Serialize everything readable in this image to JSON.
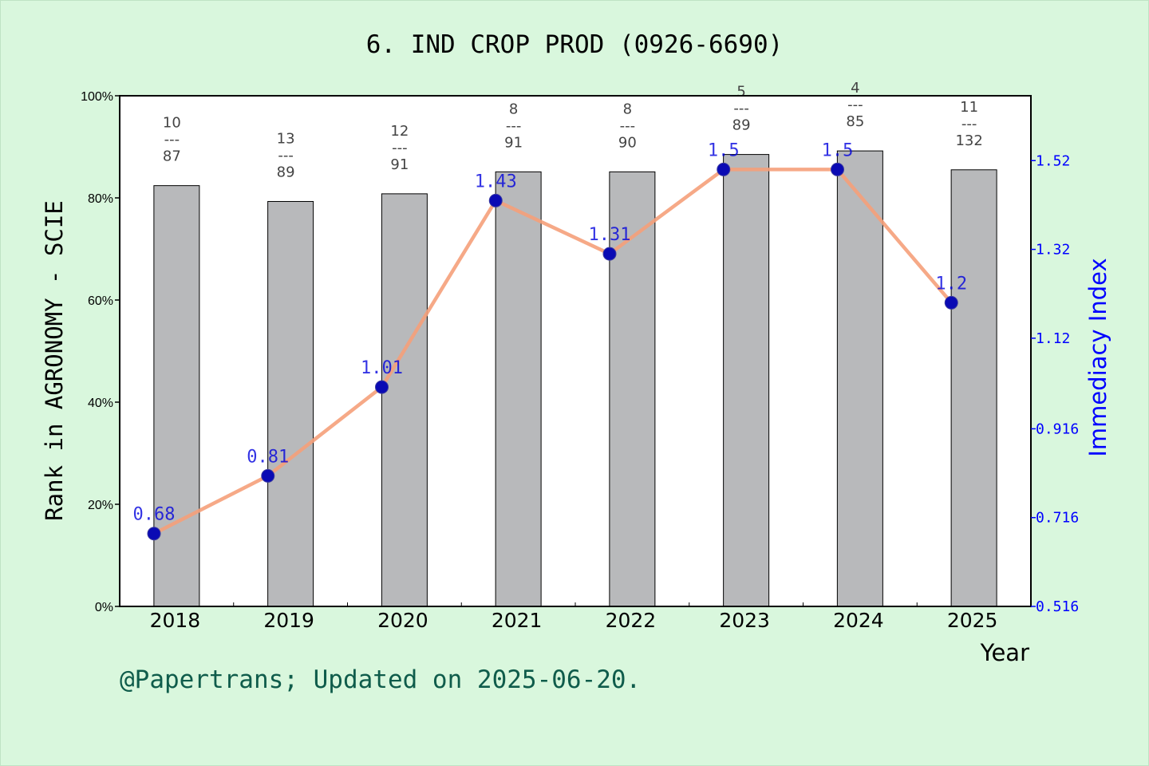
{
  "page": {
    "footer": "@Papertrans; Updated on 2025-06-20."
  },
  "colors": {
    "background": "#d9f7dd",
    "plot_background": "#ffffff",
    "bar": "#b8b9bb",
    "line": "#f5a07a",
    "point": "#0a0ab4",
    "label_blue": "#0000dd",
    "right_axis": "#0000ff"
  },
  "chart_data": {
    "type": "bar",
    "title": "6. IND CROP PROD (0926-6690)",
    "xlabel": "Year",
    "ylabel": "Rank in AGRONOMY - SCIE",
    "y2label": "Immediacy Index",
    "categories": [
      "2018",
      "2019",
      "2020",
      "2021",
      "2022",
      "2023",
      "2024",
      "2025"
    ],
    "ylim": [
      0,
      100
    ],
    "y_ticks": [
      0,
      20,
      40,
      60,
      80,
      100
    ],
    "y_tick_labels": [
      "0%",
      "20%",
      "40%",
      "60%",
      "80%",
      "100%"
    ],
    "y2lim": [
      0.516,
      1.666
    ],
    "y2_ticks": [
      0.516,
      0.716,
      0.916,
      1.12,
      1.32,
      1.52
    ],
    "y2_tick_labels": [
      "0.516",
      "0.716",
      "0.916",
      "1.12",
      "1.32",
      "1.52"
    ],
    "series": [
      {
        "type": "bar",
        "axis": "left",
        "values": [
          82.4,
          79.3,
          80.8,
          85.1,
          85.1,
          88.5,
          89.2,
          85.5
        ],
        "labels": [
          {
            "rank": "10",
            "sep": "---",
            "total": "87"
          },
          {
            "rank": "13",
            "sep": "---",
            "total": "89"
          },
          {
            "rank": "12",
            "sep": "---",
            "total": "91"
          },
          {
            "rank": "8",
            "sep": "---",
            "total": "91"
          },
          {
            "rank": "8",
            "sep": "---",
            "total": "90"
          },
          {
            "rank": "5",
            "sep": "---",
            "total": "89"
          },
          {
            "rank": "4",
            "sep": "---",
            "total": "85"
          },
          {
            "rank": "11",
            "sep": "---",
            "total": "132"
          }
        ]
      },
      {
        "type": "line",
        "axis": "right",
        "values": [
          0.68,
          0.81,
          1.01,
          1.43,
          1.31,
          1.5,
          1.5,
          1.2
        ],
        "labels": [
          "0.68",
          "0.81",
          "1.01",
          "1.43",
          "1.31",
          "1.5",
          "1.5",
          "1.2"
        ]
      }
    ],
    "grid": false,
    "legend": "none"
  }
}
